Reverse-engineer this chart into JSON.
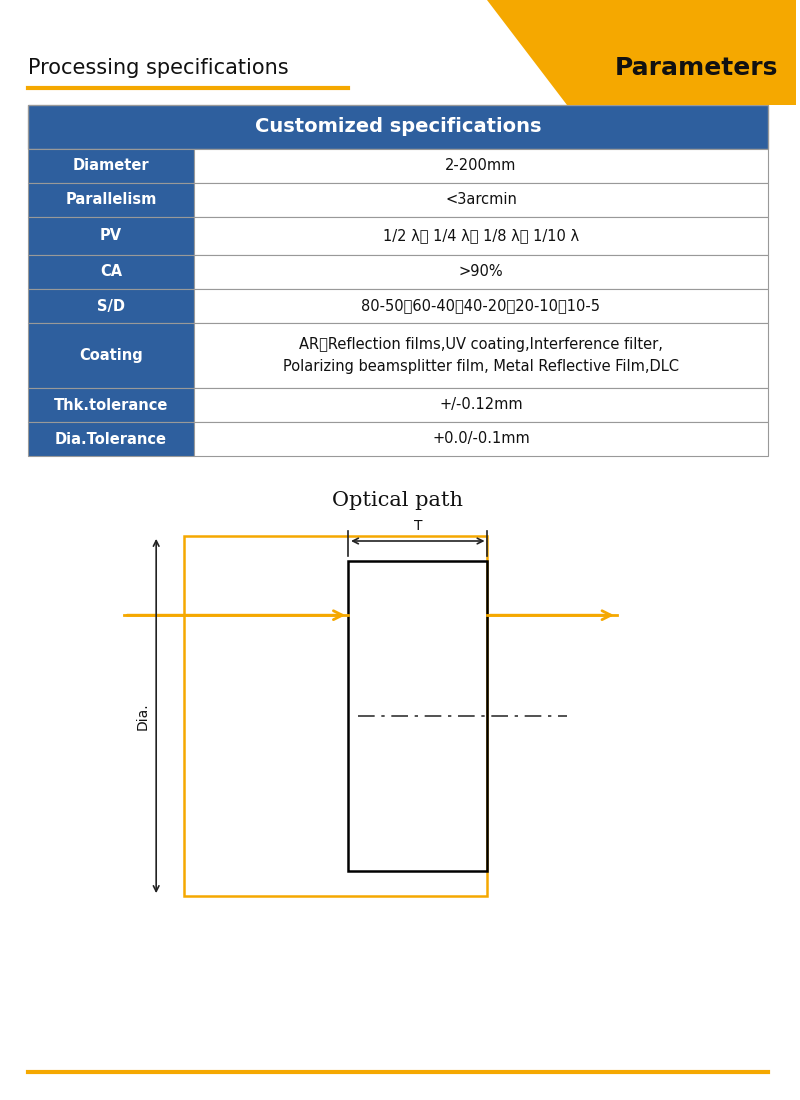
{
  "title_left": "Processing specifications",
  "title_right": "Parameters",
  "title_right_bg": "#F5A800",
  "title_left_underline": "#F5A800",
  "table_header": "Customized specifications",
  "table_header_bg": "#2E5F9E",
  "table_header_color": "#FFFFFF",
  "table_left_bg": "#2E5F9E",
  "table_left_color": "#FFFFFF",
  "table_right_bg": "#FFFFFF",
  "table_right_color": "#111111",
  "table_border_color": "#999999",
  "rows": [
    [
      "Diameter",
      "2-200mm"
    ],
    [
      "Parallelism",
      "<3arcmin"
    ],
    [
      "PV",
      "1/2 λ、 1/4 λ、 1/8 λ、 1/10 λ"
    ],
    [
      "CA",
      ">90%"
    ],
    [
      "S/D",
      "80-50、60-40、40-20、20-10、10-5"
    ],
    [
      "Coating",
      "AR、Reflection films,UV coating,Interference filter,\nPolarizing beamsplitter film, Metal Reflective Film,DLC"
    ],
    [
      "Thk.tolerance",
      "+/-0.12mm"
    ],
    [
      "Dia.Tolerance",
      "+0.0/-0.1mm"
    ]
  ],
  "optical_path_title": "Optical path",
  "arrow_color": "#F5A800",
  "diagram_color": "#000000",
  "footer_line_color": "#F5A800",
  "bg_color": "#FFFFFF"
}
